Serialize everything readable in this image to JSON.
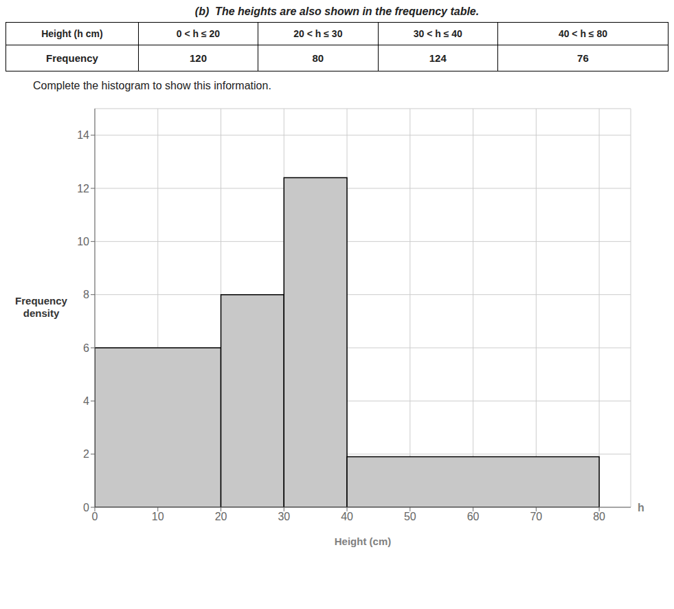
{
  "chart_data": {
    "type": "histogram",
    "title": "(b)  The heights are also shown in the frequency table.",
    "subtitle": "Complete the histogram to show this information.",
    "table": {
      "headers": [
        "Height (h cm)",
        "0 < h ≤ 20",
        "20 < h ≤ 30",
        "30 < h ≤ 40",
        "40 < h ≤ 80"
      ],
      "rows": [
        [
          "Frequency",
          "120",
          "80",
          "124",
          "76"
        ]
      ]
    },
    "bins": [
      0,
      20,
      30,
      40,
      80
    ],
    "values": [
      6,
      8,
      12.4,
      1.9
    ],
    "color": "#c8c8c8",
    "xlabel": "Height (cm)",
    "ylabel": "Frequency\ndensity",
    "annotations": [
      "h"
    ],
    "xlim": [
      0,
      85
    ],
    "ylim": [
      0,
      15
    ],
    "xticks": [
      0,
      10,
      20,
      30,
      40,
      50,
      60,
      70,
      80
    ],
    "yticks": [
      0,
      2,
      4,
      6,
      8,
      10,
      12,
      14
    ],
    "grid": true
  }
}
